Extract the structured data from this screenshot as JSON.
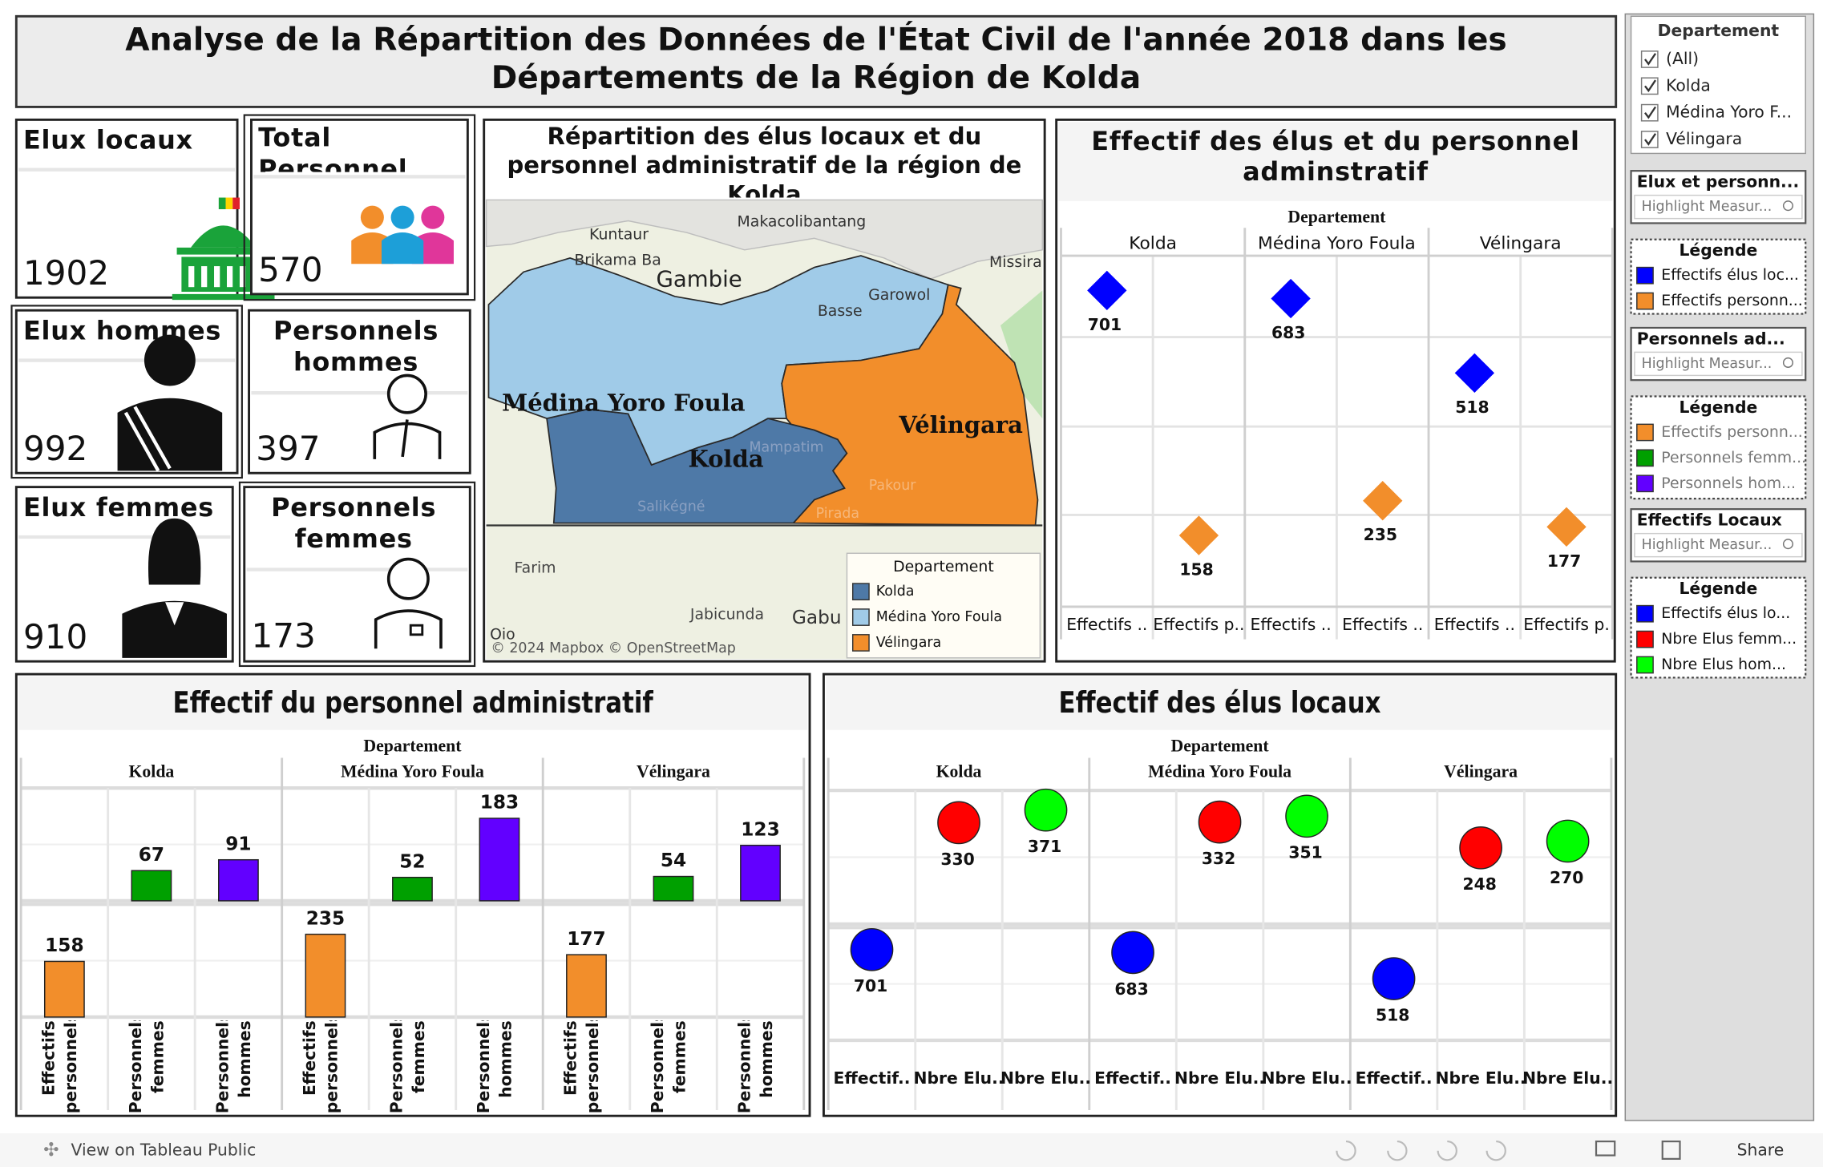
{
  "title": "Analyse de la Répartition des Données de l'État Civil de l'année 2018 dans les Départements de la Région de Kolda",
  "kpis": [
    {
      "label": "Elux locaux",
      "value": 1902
    },
    {
      "label": "Total Personnel",
      "value": 570
    },
    {
      "label": "Elux hommes",
      "value": 992
    },
    {
      "label": "Personnels hommes",
      "value": 397
    },
    {
      "label": "Elux femmes",
      "value": 910
    },
    {
      "label": "Personnels femmes",
      "value": 173
    }
  ],
  "map": {
    "title": "Répartition des élus locaux et du personnel administratif de la région de Kolda",
    "legend_title": "Departement",
    "regions": [
      {
        "name": "Kolda",
        "color": "#4e79a7"
      },
      {
        "name": "Médina Yoro Foula",
        "color": "#a0cbe8"
      },
      {
        "name": "Vélingara",
        "color": "#f28e2b"
      }
    ],
    "places": [
      "Kuntaur",
      "Brikama Ba",
      "Gambie",
      "Makacolibantang",
      "Basse",
      "Garowol",
      "Missira",
      "Farim",
      "Jabicunda",
      "Gabu",
      "Mampatim",
      "Salikégné",
      "Pakour",
      "Pirada",
      "Oio"
    ],
    "attribution": "© 2024 Mapbox  © OpenStreetMap"
  },
  "charts": [
    {
      "type": "scatter",
      "title": "Effectif des élus et du personnel adminstratif",
      "facet_label": "Departement",
      "categories": [
        "Kolda",
        "Médina Yoro Foula",
        "Vélingara"
      ],
      "column_labels": [
        [
          "Effectifs ..",
          "Effectifs p.."
        ],
        [
          "Effectifs ..",
          "Effectifs .."
        ],
        [
          "Effectifs ..",
          "Effectifs p."
        ]
      ],
      "ylim": [
        0,
        778
      ],
      "series": [
        {
          "color": "#0000ff",
          "values": [
            701,
            683,
            518
          ]
        },
        {
          "color": "#f28e2b",
          "values": [
            158,
            235,
            177
          ]
        }
      ]
    },
    {
      "type": "bar",
      "title": "Effectif du personnel administratif",
      "facet_label": "Departement",
      "categories": [
        "Kolda",
        "Médina Yoro Foula",
        "Vélingara"
      ],
      "series": [
        {
          "name": "Effectifs personnels",
          "color": "#f28e2b",
          "values": [
            158,
            235,
            177
          ],
          "ylim": [
            0,
            320
          ]
        },
        {
          "name": "Personnels femmes",
          "color": "#00a000",
          "values": [
            67,
            52,
            54
          ],
          "ylim": [
            0,
            250
          ]
        },
        {
          "name": "Personnels hommes",
          "color": "#6200ff",
          "values": [
            91,
            183,
            123
          ],
          "ylim": [
            0,
            250
          ]
        }
      ]
    },
    {
      "type": "bubble",
      "title": "Effectif des élus  locaux",
      "facet_label": "Departement",
      "categories": [
        "Kolda",
        "Médina Yoro Foula",
        "Vélingara"
      ],
      "series": [
        {
          "name": "Effectif..",
          "color": "#0000ff",
          "values": [
            701,
            683,
            518
          ],
          "ylim": [
            130,
            840
          ]
        },
        {
          "name": "Nbre Elu..",
          "color": "#ff0000",
          "values": [
            330,
            332,
            248
          ],
          "ylim": [
            0,
            435
          ]
        },
        {
          "name": "Nbre Elu..",
          "color": "#00ff00",
          "values": [
            371,
            351,
            270
          ],
          "ylim": [
            0,
            435
          ]
        }
      ]
    }
  ],
  "sidebar": {
    "filter": {
      "title": "Departement",
      "items": [
        "(All)",
        "Kolda",
        "Médina Yoro F...",
        "Vélingara"
      ]
    },
    "panels": [
      {
        "type": "highlight",
        "title": "Elux et personn...",
        "placeholder": "Highlight Measur..."
      },
      {
        "type": "legend",
        "title": "Légende",
        "items": [
          {
            "label": "Effectifs élus loc...",
            "color": "#0000ff"
          },
          {
            "label": "Effectifs personn...",
            "color": "#f28e2b"
          }
        ]
      },
      {
        "type": "highlight",
        "title": "Personnels ad...",
        "placeholder": "Highlight Measur..."
      },
      {
        "type": "legend",
        "title": "Légende",
        "items": [
          {
            "label": "Effectifs personn...",
            "color": "#f28e2b"
          },
          {
            "label": "Personnels femm...",
            "color": "#00a000"
          },
          {
            "label": "Personnels hom...",
            "color": "#6200ff"
          }
        ]
      },
      {
        "type": "highlight",
        "title": "Effectifs Locaux",
        "placeholder": "Highlight Measur..."
      },
      {
        "type": "legend",
        "title": "Légende",
        "items": [
          {
            "label": "Effectifs élus lo...",
            "color": "#0000ff"
          },
          {
            "label": "Nbre Elus femm...",
            "color": "#ff0000"
          },
          {
            "label": "Nbre Elus hom...",
            "color": "#00ff00"
          }
        ]
      }
    ]
  },
  "footer": {
    "link": "View on Tableau Public",
    "share": "Share"
  }
}
